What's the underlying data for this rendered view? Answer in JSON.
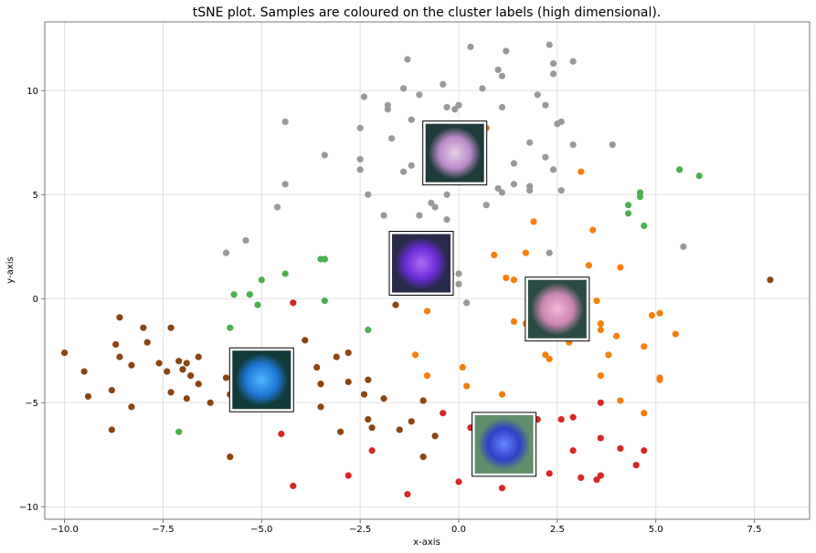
{
  "chart_data": {
    "type": "scatter",
    "title": "tSNE plot. Samples are coloured on the cluster labels (high dimensional).",
    "xlabel": "x-axis",
    "ylabel": "y-axis",
    "xlim": [
      -10.5,
      8.9
    ],
    "ylim": [
      -10.6,
      13.3
    ],
    "xticks": [
      -10.0,
      -7.5,
      -5.0,
      -2.5,
      0.0,
      2.5,
      5.0,
      7.5
    ],
    "xtick_labels": [
      "−10.0",
      "−7.5",
      "−5.0",
      "−2.5",
      "0.0",
      "2.5",
      "5.0",
      "7.5"
    ],
    "yticks": [
      -10,
      -5,
      0,
      5,
      10
    ],
    "ytick_labels": [
      "−10",
      "−5",
      "0",
      "5",
      "10"
    ],
    "grid": true,
    "series": [
      {
        "color": "#999999",
        "points": [
          [
            0.3,
            12.1
          ],
          [
            1.2,
            11.9
          ],
          [
            2.3,
            12.2
          ],
          [
            -1.3,
            11.5
          ],
          [
            1.0,
            11.0
          ],
          [
            2.4,
            11.3
          ],
          [
            2.9,
            11.4
          ],
          [
            1.1,
            10.7
          ],
          [
            2.4,
            10.8
          ],
          [
            -1.4,
            10.1
          ],
          [
            -1.0,
            9.8
          ],
          [
            -0.4,
            10.3
          ],
          [
            0.6,
            10.1
          ],
          [
            2.0,
            9.8
          ],
          [
            -2.4,
            9.7
          ],
          [
            -1.8,
            9.3
          ],
          [
            -1.8,
            9.1
          ],
          [
            -0.3,
            9.2
          ],
          [
            -0.1,
            9.1
          ],
          [
            0.0,
            9.3
          ],
          [
            1.1,
            9.2
          ],
          [
            2.2,
            9.3
          ],
          [
            -4.4,
            8.5
          ],
          [
            -1.2,
            8.6
          ],
          [
            2.6,
            8.5
          ],
          [
            2.5,
            8.4
          ],
          [
            -2.5,
            8.2
          ],
          [
            -1.7,
            7.7
          ],
          [
            1.8,
            7.5
          ],
          [
            2.9,
            7.4
          ],
          [
            3.9,
            7.4
          ],
          [
            -3.4,
            6.9
          ],
          [
            -0.8,
            7.0
          ],
          [
            2.2,
            6.8
          ],
          [
            -2.5,
            6.7
          ],
          [
            -1.4,
            6.1
          ],
          [
            -2.5,
            6.2
          ],
          [
            -1.2,
            6.4
          ],
          [
            1.4,
            6.5
          ],
          [
            2.4,
            6.2
          ],
          [
            -4.4,
            5.5
          ],
          [
            1.0,
            5.3
          ],
          [
            1.4,
            5.5
          ],
          [
            1.8,
            5.4
          ],
          [
            -2.3,
            5.0
          ],
          [
            -0.3,
            5.0
          ],
          [
            1.1,
            5.1
          ],
          [
            1.8,
            5.2
          ],
          [
            2.6,
            5.2
          ],
          [
            -4.6,
            4.4
          ],
          [
            -0.7,
            4.6
          ],
          [
            -0.6,
            4.4
          ],
          [
            0.7,
            4.5
          ],
          [
            -1.0,
            4.0
          ],
          [
            -0.3,
            3.8
          ],
          [
            -1.9,
            4.0
          ],
          [
            -5.9,
            2.2
          ],
          [
            -5.4,
            2.8
          ],
          [
            2.3,
            2.2
          ],
          [
            5.7,
            2.5
          ],
          [
            -0.2,
            1.2
          ],
          [
            0.0,
            1.2
          ],
          [
            0.0,
            0.7
          ],
          [
            0.2,
            -0.2
          ],
          [
            -3.4,
            1.9
          ]
        ]
      },
      {
        "color": "#f57f0e",
        "points": [
          [
            0.5,
            8.4
          ],
          [
            0.7,
            8.2
          ],
          [
            3.1,
            6.1
          ],
          [
            1.9,
            3.7
          ],
          [
            3.4,
            3.3
          ],
          [
            1.7,
            2.2
          ],
          [
            0.9,
            2.1
          ],
          [
            3.3,
            1.6
          ],
          [
            4.1,
            1.5
          ],
          [
            1.2,
            1.0
          ],
          [
            1.4,
            0.9
          ],
          [
            3.5,
            -0.1
          ],
          [
            4.9,
            -0.8
          ],
          [
            5.1,
            -0.7
          ],
          [
            -0.8,
            -0.6
          ],
          [
            1.4,
            -1.1
          ],
          [
            1.7,
            -1.2
          ],
          [
            3.6,
            -1.2
          ],
          [
            3.6,
            -1.5
          ],
          [
            4.0,
            -1.8
          ],
          [
            5.5,
            -1.7
          ],
          [
            2.8,
            -2.1
          ],
          [
            4.7,
            -2.3
          ],
          [
            -1.1,
            -2.7
          ],
          [
            2.2,
            -2.7
          ],
          [
            2.3,
            -2.9
          ],
          [
            3.8,
            -2.7
          ],
          [
            0.1,
            -3.3
          ],
          [
            -0.8,
            -3.7
          ],
          [
            3.6,
            -3.7
          ],
          [
            5.1,
            -3.8
          ],
          [
            5.1,
            -3.9
          ],
          [
            0.2,
            -4.2
          ],
          [
            1.1,
            -4.6
          ],
          [
            4.1,
            -4.9
          ],
          [
            4.7,
            -5.5
          ]
        ]
      },
      {
        "color": "#4caf50",
        "points": [
          [
            5.6,
            6.2
          ],
          [
            6.1,
            5.9
          ],
          [
            4.6,
            5.1
          ],
          [
            4.6,
            4.9
          ],
          [
            4.3,
            4.5
          ],
          [
            4.3,
            4.1
          ],
          [
            4.7,
            3.5
          ],
          [
            -3.5,
            1.9
          ],
          [
            -3.4,
            1.9
          ],
          [
            -4.4,
            1.2
          ],
          [
            -5.0,
            0.9
          ],
          [
            -5.7,
            0.2
          ],
          [
            -5.3,
            0.2
          ],
          [
            -5.1,
            -0.3
          ],
          [
            -3.4,
            -0.1
          ],
          [
            -5.8,
            -1.4
          ],
          [
            -2.3,
            -1.5
          ],
          [
            -7.1,
            -6.4
          ]
        ]
      },
      {
        "color": "#8b4513",
        "points": [
          [
            7.9,
            0.9
          ],
          [
            -1.6,
            -0.3
          ],
          [
            -8.6,
            -0.9
          ],
          [
            -8.0,
            -1.4
          ],
          [
            -7.3,
            -1.4
          ],
          [
            -8.7,
            -2.2
          ],
          [
            -7.9,
            -2.1
          ],
          [
            -3.9,
            -2.0
          ],
          [
            -10.0,
            -2.6
          ],
          [
            -2.8,
            -2.6
          ],
          [
            -8.6,
            -2.8
          ],
          [
            -6.6,
            -2.8
          ],
          [
            -3.1,
            -2.8
          ],
          [
            -7.6,
            -3.1
          ],
          [
            -7.1,
            -3.0
          ],
          [
            -6.9,
            -3.1
          ],
          [
            -8.3,
            -3.2
          ],
          [
            -7.0,
            -3.4
          ],
          [
            -7.4,
            -3.5
          ],
          [
            -9.5,
            -3.5
          ],
          [
            -7.0,
            -3.4
          ],
          [
            -6.8,
            -3.7
          ],
          [
            -3.6,
            -3.3
          ],
          [
            -6.6,
            -4.1
          ],
          [
            -8.8,
            -4.4
          ],
          [
            -7.3,
            -4.5
          ],
          [
            -2.8,
            -4.0
          ],
          [
            -2.3,
            -3.9
          ],
          [
            -3.5,
            -4.1
          ],
          [
            -9.4,
            -4.7
          ],
          [
            -8.3,
            -5.2
          ],
          [
            -6.9,
            -4.8
          ],
          [
            -6.3,
            -5.0
          ],
          [
            -5.9,
            -3.8
          ],
          [
            -5.8,
            -4.6
          ],
          [
            -1.9,
            -4.8
          ],
          [
            -3.5,
            -5.2
          ],
          [
            -2.4,
            -4.6
          ],
          [
            -2.2,
            -6.2
          ],
          [
            -2.3,
            -5.8
          ],
          [
            -1.2,
            -5.9
          ],
          [
            -1.5,
            -6.3
          ],
          [
            -3.0,
            -6.4
          ],
          [
            -0.6,
            -6.6
          ],
          [
            -0.9,
            -7.6
          ],
          [
            -8.8,
            -6.3
          ],
          [
            -5.8,
            -7.6
          ],
          [
            -0.9,
            -4.9
          ]
        ]
      },
      {
        "color": "#d62728",
        "points": [
          [
            -4.2,
            -0.2
          ],
          [
            0.9,
            -5.9
          ],
          [
            1.6,
            -5.9
          ],
          [
            2.0,
            -5.8
          ],
          [
            2.6,
            -5.8
          ],
          [
            2.9,
            -5.7
          ],
          [
            3.6,
            -5.0
          ],
          [
            -0.4,
            -5.5
          ],
          [
            -4.5,
            -6.5
          ],
          [
            0.3,
            -6.2
          ],
          [
            3.6,
            -6.7
          ],
          [
            -2.2,
            -7.3
          ],
          [
            2.9,
            -7.3
          ],
          [
            4.1,
            -7.2
          ],
          [
            4.7,
            -7.3
          ],
          [
            4.5,
            -8.0
          ],
          [
            2.3,
            -8.4
          ],
          [
            3.1,
            -8.6
          ],
          [
            3.5,
            -8.7
          ],
          [
            3.6,
            -8.5
          ],
          [
            -2.8,
            -8.5
          ],
          [
            0.0,
            -8.8
          ],
          [
            -4.2,
            -9.0
          ],
          [
            1.1,
            -9.1
          ],
          [
            -1.3,
            -9.4
          ]
        ]
      }
    ],
    "image_insets": [
      {
        "name": "purple-cell-inset",
        "x": -0.1,
        "y": 7.0,
        "core": "#e6cfe6",
        "mid": "#b98ac8",
        "edge": "#1f3b3a"
      },
      {
        "name": "violet-cell-inset",
        "x": -0.95,
        "y": 1.7,
        "core": "#b06af0",
        "mid": "#6a2bd8",
        "edge": "#2a2a4a"
      },
      {
        "name": "pink-cell-inset",
        "x": 2.5,
        "y": -0.5,
        "core": "#f2b8d8",
        "mid": "#c985b0",
        "edge": "#2b4b45"
      },
      {
        "name": "blue-cell-inset",
        "x": -5.0,
        "y": -3.9,
        "core": "#4fb6ff",
        "mid": "#1e78d8",
        "edge": "#133a3a"
      },
      {
        "name": "navy-cell-inset",
        "x": 1.15,
        "y": -7.0,
        "core": "#6a86ff",
        "mid": "#2c40c8",
        "edge": "#5f8f6a"
      }
    ]
  }
}
